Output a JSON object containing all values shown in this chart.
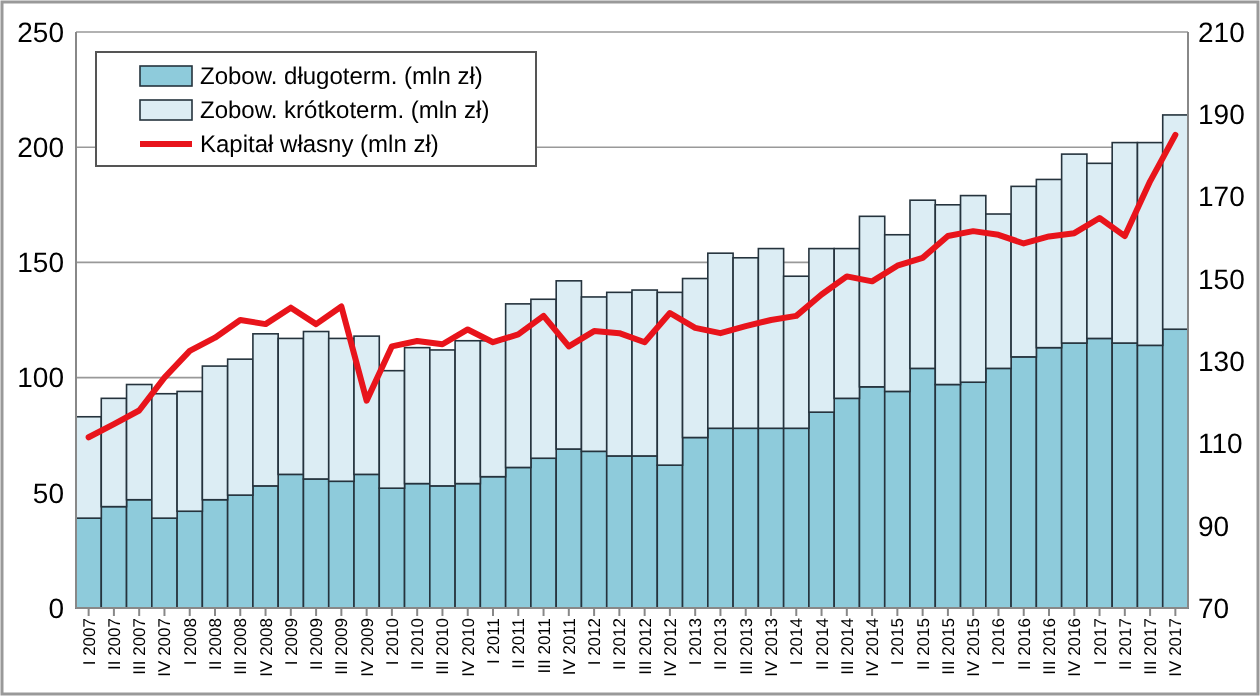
{
  "chart_data": {
    "type": "bar",
    "stacked": true,
    "categories": [
      "I 2007",
      "II 2007",
      "III 2007",
      "IV 2007",
      "I 2008",
      "II 2008",
      "III 2008",
      "IV 2008",
      "I 2009",
      "II 2009",
      "III 2009",
      "IV 2009",
      "I 2010",
      "II 2010",
      "III 2010",
      "IV 2010",
      "I 2011",
      "II 2011",
      "III 2011",
      "IV 2011",
      "I 2012",
      "II 2012",
      "III 2012",
      "IV 2012",
      "I 2013",
      "II 2013",
      "III 2013",
      "IV 2013",
      "I 2014",
      "II 2014",
      "III 2014",
      "IV 2014",
      "I 2015",
      "II 2015",
      "III 2015",
      "IV 2015",
      "I 2016",
      "II 2016",
      "III 2016",
      "IV 2016",
      "I 2017",
      "II 2017",
      "III 2017",
      "IV 2017"
    ],
    "series": [
      {
        "name": "Zobow. długoterm. (mln zł)",
        "color": "#8ecbdb",
        "values": [
          39,
          44,
          47,
          39,
          42,
          47,
          49,
          53,
          58,
          56,
          55,
          58,
          52,
          54,
          53,
          54,
          57,
          61,
          65,
          69,
          68,
          66,
          66,
          62,
          74,
          78,
          78,
          78,
          78,
          85,
          91,
          96,
          94,
          104,
          97,
          98,
          104,
          109,
          113,
          115,
          117,
          115,
          114,
          121
        ]
      },
      {
        "name": "Zobow. krótkoterm. (mln zł)",
        "color": "#dcedf4",
        "values": [
          44,
          47,
          50,
          54,
          52,
          58,
          59,
          66,
          59,
          64,
          62,
          60,
          51,
          59,
          59,
          62,
          59,
          71,
          69,
          73,
          67,
          71,
          72,
          75,
          69,
          76,
          74,
          78,
          66,
          71,
          65,
          74,
          68,
          73,
          78,
          81,
          67,
          74,
          73,
          82,
          76,
          87,
          88,
          93
        ]
      },
      {
        "name": "Kapitał własny (mln zł)",
        "type": "line",
        "axis": "y2",
        "color": "#e8141b",
        "values": [
          111.5,
          114.7,
          118,
          126,
          132.5,
          135.7,
          140,
          139,
          143,
          139,
          143.3,
          120.4,
          133.6,
          134.9,
          134.1,
          137.7,
          134.6,
          136.5,
          141,
          133.6,
          137.3,
          136.8,
          134.6,
          141.7,
          138.1,
          136.8,
          138.5,
          140,
          141,
          146.2,
          150.6,
          149.4,
          153.2,
          155.1,
          160.4,
          161.6,
          160.7,
          158.6,
          160.3,
          161.1,
          164.8,
          160.4,
          173.7,
          185
        ]
      }
    ],
    "ylim": [
      0,
      250
    ],
    "yticks": [
      0,
      50,
      100,
      150,
      200,
      250
    ],
    "y2lim": [
      70,
      210
    ],
    "y2ticks": [
      70,
      90,
      110,
      130,
      150,
      170,
      190,
      210
    ],
    "grid": "y",
    "legend": "top left"
  }
}
